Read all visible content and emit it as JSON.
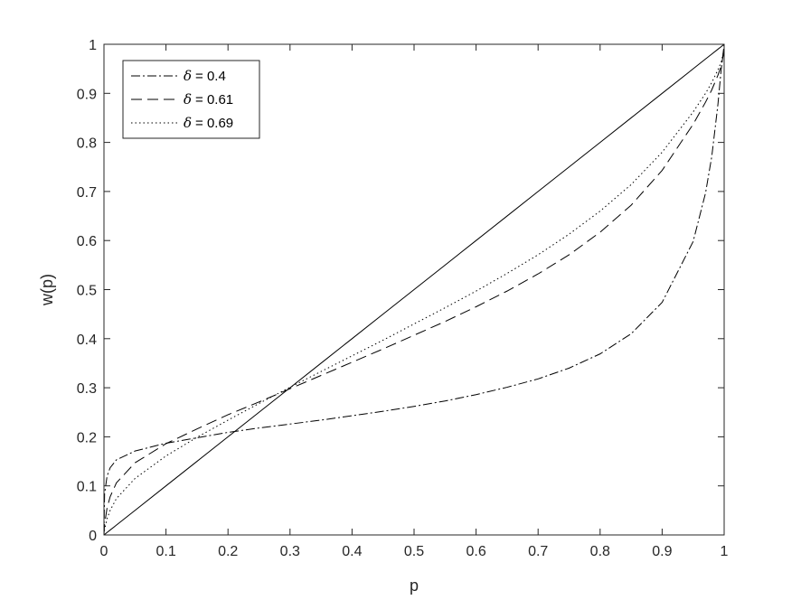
{
  "chart_data": {
    "type": "line",
    "xlabel": "p",
    "ylabel": "w(p)",
    "xlim": [
      0,
      1
    ],
    "ylim": [
      0,
      1
    ],
    "xticks": [
      "0",
      "0.1",
      "0.2",
      "0.3",
      "0.4",
      "0.5",
      "0.6",
      "0.7",
      "0.8",
      "0.9",
      "1"
    ],
    "yticks": [
      "0",
      "0.1",
      "0.2",
      "0.3",
      "0.4",
      "0.5",
      "0.6",
      "0.7",
      "0.8",
      "0.9",
      "1"
    ],
    "grid": false,
    "legend_position": "top-left",
    "x": [
      0,
      0.001,
      0.005,
      0.01,
      0.02,
      0.05,
      0.1,
      0.15,
      0.2,
      0.25,
      0.3,
      0.35,
      0.4,
      0.45,
      0.5,
      0.55,
      0.6,
      0.65,
      0.7,
      0.75,
      0.8,
      0.85,
      0.9,
      0.95,
      0.97,
      0.98,
      0.99,
      0.995,
      0.999,
      1
    ],
    "series": [
      {
        "name": "= 0.4",
        "symbol": "δ",
        "style": "dashdot",
        "values": [
          0,
          0.084,
          0.12,
          0.137,
          0.153,
          0.171,
          0.187,
          0.198,
          0.209,
          0.218,
          0.226,
          0.234,
          0.243,
          0.252,
          0.262,
          0.273,
          0.286,
          0.301,
          0.318,
          0.34,
          0.369,
          0.41,
          0.474,
          0.598,
          0.697,
          0.771,
          0.878,
          0.946,
          0.989,
          1
        ]
      },
      {
        "name": "= 0.61",
        "symbol": "δ",
        "style": "dashed",
        "values": [
          0,
          0.022,
          0.055,
          0.078,
          0.106,
          0.147,
          0.186,
          0.216,
          0.245,
          0.271,
          0.298,
          0.325,
          0.352,
          0.379,
          0.407,
          0.435,
          0.465,
          0.497,
          0.532,
          0.571,
          0.617,
          0.672,
          0.743,
          0.837,
          0.882,
          0.907,
          0.937,
          0.955,
          0.98,
          1
        ]
      },
      {
        "name": "= 0.69",
        "symbol": "δ",
        "style": "dotted",
        "values": [
          0,
          0.011,
          0.033,
          0.05,
          0.074,
          0.115,
          0.161,
          0.199,
          0.234,
          0.268,
          0.301,
          0.333,
          0.365,
          0.397,
          0.43,
          0.463,
          0.497,
          0.533,
          0.571,
          0.613,
          0.66,
          0.714,
          0.78,
          0.862,
          0.9,
          0.922,
          0.948,
          0.963,
          0.984,
          1
        ]
      },
      {
        "name": "",
        "style": "solid",
        "values": [
          0,
          0.001,
          0.005,
          0.01,
          0.02,
          0.05,
          0.1,
          0.15,
          0.2,
          0.25,
          0.3,
          0.35,
          0.4,
          0.45,
          0.5,
          0.55,
          0.6,
          0.65,
          0.7,
          0.75,
          0.8,
          0.85,
          0.9,
          0.95,
          0.97,
          0.98,
          0.99,
          0.995,
          0.999,
          1
        ]
      }
    ]
  }
}
